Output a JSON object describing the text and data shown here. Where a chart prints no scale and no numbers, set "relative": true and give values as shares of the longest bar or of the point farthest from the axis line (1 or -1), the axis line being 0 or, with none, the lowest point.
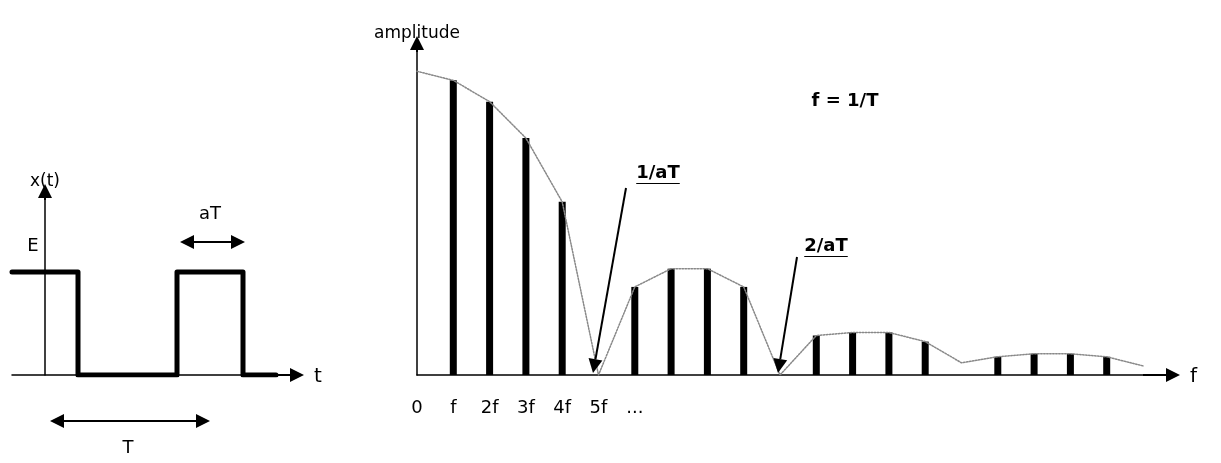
{
  "chart_data": [
    {
      "type": "step",
      "relative": true,
      "xlabel": "t",
      "ylabel": "x(t)",
      "categories": [
        null,
        null,
        null,
        null,
        null,
        null,
        null,
        null,
        null
      ],
      "series": [
        {
          "color": "#000000",
          "values": [
            1,
            1,
            0,
            0,
            0,
            1,
            1,
            0,
            0
          ]
        }
      ],
      "annotations": [
        "E",
        "aT",
        "T"
      ]
    },
    {
      "type": "bar",
      "relative": true,
      "xlabel": "f",
      "ylabel": "amplitude",
      "categories": [
        "0",
        "f",
        "2f",
        "3f",
        "4f",
        "5f",
        "...",
        null,
        null,
        null,
        null,
        null,
        null,
        null,
        null,
        null,
        null,
        null,
        null,
        null,
        null
      ],
      "series": [
        {
          "color": "#000000",
          "values": [
            null,
            0.97,
            0.9,
            0.78,
            0.57,
            null,
            0.29,
            0.35,
            0.35,
            0.29,
            null,
            0.13,
            0.14,
            0.14,
            0.11,
            null,
            0.06,
            0.07,
            0.07,
            0.06,
            null
          ]
        },
        {
          "type": "line",
          "color": "#888888",
          "line_style": "dotted",
          "marker": "none",
          "values": [
            1,
            0.97,
            0.9,
            0.78,
            0.57,
            0,
            0.29,
            0.35,
            0.35,
            0.29,
            0,
            0.13,
            0.14,
            0.14,
            0.11,
            0.04,
            0.06,
            0.07,
            0.07,
            0.06,
            0.03
          ]
        }
      ],
      "annotations": [
        "f = 1/T",
        "1/aT",
        "2/aT"
      ]
    }
  ]
}
